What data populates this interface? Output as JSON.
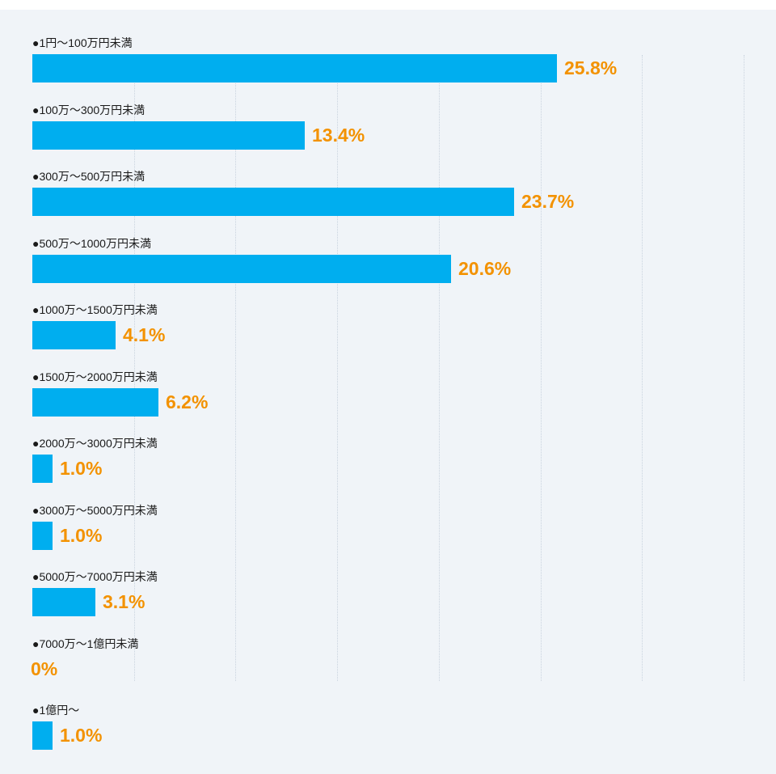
{
  "chart_data": {
    "type": "bar",
    "orientation": "horizontal",
    "grid": true,
    "xlim": [
      0,
      35
    ],
    "categories": [
      "●1円〜100万円未満",
      "●100万〜300万円未満",
      "●300万〜500万円未満",
      "●500万〜1000万円未満",
      "●1000万〜1500万円未満",
      "●1500万〜2000万円未満",
      "●2000万〜3000万円未満",
      "●3000万〜5000万円未満",
      "●5000万〜7000万円未満",
      "●7000万〜1億円未満",
      "●1億円〜"
    ],
    "values": [
      25.8,
      13.4,
      23.7,
      20.6,
      4.1,
      6.2,
      1.0,
      1.0,
      3.1,
      0,
      1.0
    ],
    "value_labels": [
      "25.8%",
      "13.4%",
      "23.7%",
      "20.6%",
      "4.1%",
      "6.2%",
      "1.0%",
      "1.0%",
      "3.1%",
      "0%",
      "1.0%"
    ],
    "colors": {
      "bar": "#00aeef",
      "value_label": "#f39200",
      "category_label": "#1a1a1a",
      "background": "#f0f4f8"
    }
  }
}
